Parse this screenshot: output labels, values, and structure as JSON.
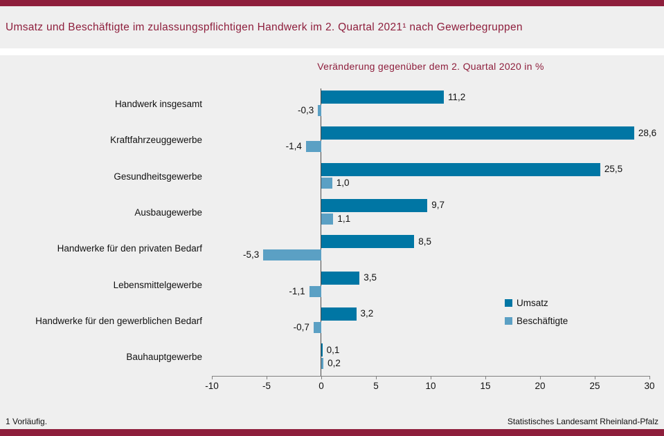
{
  "header": {
    "title": "Umsatz und Beschäftigte im zulassungspflichtigen Handwerk im 2. Quartal 2021¹ nach Gewerbegruppen"
  },
  "chart_data": {
    "type": "bar",
    "orientation": "horizontal",
    "title": "Veränderung gegenüber dem 2. Quartal 2020 in %",
    "categories": [
      "Handwerk insgesamt",
      "Kraftfahrzeuggewerbe",
      "Gesundheitsgewerbe",
      "Ausbaugewerbe",
      "Handwerke für den privaten Bedarf",
      "Lebensmittelgewerbe",
      "Handwerke für den gewerblichen Bedarf",
      "Bauhauptgewerbe"
    ],
    "series": [
      {
        "name": "Umsatz",
        "color": "#0076a4",
        "values": [
          11.2,
          28.6,
          25.5,
          9.7,
          8.5,
          3.5,
          3.2,
          0.1
        ]
      },
      {
        "name": "Beschäftigte",
        "color": "#5ba0c4",
        "values": [
          -0.3,
          -1.4,
          1.0,
          1.1,
          -5.3,
          -1.1,
          -0.7,
          0.2
        ]
      }
    ],
    "value_labels": {
      "Umsatz": [
        "11,2",
        "28,6",
        "25,5",
        "9,7",
        "8,5",
        "3,5",
        "3,2",
        "0,1"
      ],
      "Beschäftigte": [
        "-0,3",
        "-1,4",
        "1,0",
        "1,1",
        "-5,3",
        "-1,1",
        "-0,7",
        "0,2"
      ]
    },
    "xlim": [
      -10,
      30
    ],
    "xticks": [
      -10,
      -5,
      0,
      5,
      10,
      15,
      20,
      25,
      30
    ],
    "grid": false,
    "legend_position": "right-middle"
  },
  "footer": {
    "note": "1 Vorläufig.",
    "source": "Statistisches Landesamt Rheinland-Pfalz"
  },
  "colors": {
    "accent_maroon": "#8e1e3c",
    "umsatz_blue": "#0076a4",
    "beschaeftigte_blue": "#5ba0c4",
    "panel_gray": "#efefef",
    "axis_gray": "#7f7f7f",
    "text_black": "#111111"
  }
}
